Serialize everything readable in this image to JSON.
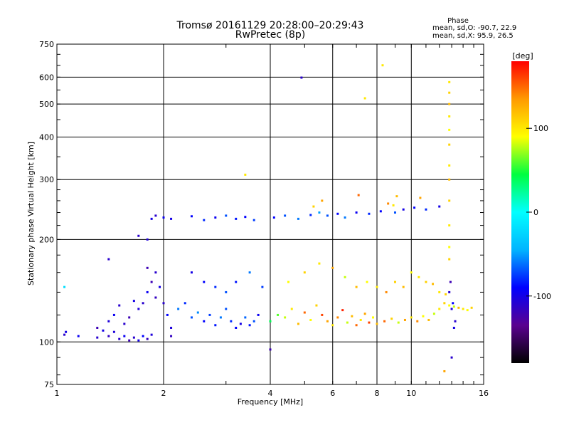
{
  "chart_data": {
    "type": "scatter",
    "title": "Tromsø 20161129 20:28:00–20:29:43",
    "subtitle": "RwPretec (8p)",
    "xlabel": "Frequency [MHz]",
    "ylabel": "Stationary phase Virtual Height [km]",
    "x_scale": "log",
    "y_scale": "log",
    "xlim": [
      1,
      16
    ],
    "ylim": [
      75,
      750
    ],
    "x_ticks": [
      1,
      2,
      4,
      6,
      8,
      10,
      16
    ],
    "y_ticks": [
      75,
      100,
      200,
      300,
      400,
      500,
      600,
      750
    ],
    "grid": true,
    "stats": {
      "heading": "Phase",
      "line_o": "mean, sd,O: -90.7, 22.9",
      "line_x": "mean, sd,X:  95.9, 26.5"
    },
    "colorbar": {
      "label": "[deg]",
      "ticks": [
        100,
        0,
        -100
      ],
      "range": [
        -180,
        180
      ],
      "colors": [
        "#000000",
        "#5a0090",
        "#0000ff",
        "#00b4ff",
        "#00ffff",
        "#00ff40",
        "#ffff00",
        "#ff9a00",
        "#ff0000"
      ]
    },
    "series": [
      {
        "values_note": "",
        "points": [
          [
            1.05,
            105,
            -110
          ],
          [
            1.06,
            107,
            -100
          ],
          [
            1.15,
            104,
            -95
          ],
          [
            1.3,
            103,
            -110
          ],
          [
            1.3,
            110,
            -120
          ],
          [
            1.35,
            108,
            -100
          ],
          [
            1.4,
            104,
            -115
          ],
          [
            1.45,
            107,
            -105
          ],
          [
            1.5,
            102,
            -110
          ],
          [
            1.55,
            104,
            -95
          ],
          [
            1.6,
            101,
            -120
          ],
          [
            1.65,
            103,
            -110
          ],
          [
            1.7,
            101,
            -100
          ],
          [
            1.75,
            104,
            -90
          ],
          [
            1.8,
            102,
            -115
          ],
          [
            1.85,
            105,
            -105
          ],
          [
            1.55,
            113,
            -110
          ],
          [
            1.6,
            118,
            -120
          ],
          [
            1.7,
            125,
            -105
          ],
          [
            1.75,
            130,
            -110
          ],
          [
            1.8,
            140,
            -95
          ],
          [
            1.85,
            150,
            -120
          ],
          [
            1.9,
            135,
            -115
          ],
          [
            1.95,
            145,
            -100
          ],
          [
            2.0,
            130,
            -110
          ],
          [
            2.05,
            120,
            -90
          ],
          [
            2.1,
            110,
            -105
          ],
          [
            2.1,
            104,
            -115
          ],
          [
            1.9,
            160,
            -110
          ],
          [
            1.8,
            165,
            -120
          ],
          [
            1.65,
            132,
            -100
          ],
          [
            1.5,
            128,
            -110
          ],
          [
            1.45,
            120,
            -95
          ],
          [
            1.4,
            115,
            -105
          ],
          [
            2.2,
            125,
            -60
          ],
          [
            2.3,
            130,
            -80
          ],
          [
            2.4,
            118,
            -70
          ],
          [
            2.5,
            122,
            -55
          ],
          [
            2.6,
            115,
            -90
          ],
          [
            2.7,
            120,
            -75
          ],
          [
            2.8,
            112,
            -85
          ],
          [
            2.9,
            118,
            -60
          ],
          [
            3.0,
            125,
            -70
          ],
          [
            3.1,
            115,
            -80
          ],
          [
            3.2,
            110,
            -90
          ],
          [
            3.3,
            113,
            -100
          ],
          [
            3.4,
            118,
            -65
          ],
          [
            3.5,
            112,
            -85
          ],
          [
            3.6,
            115,
            -70
          ],
          [
            3.7,
            120,
            -95
          ],
          [
            2.4,
            160,
            -100
          ],
          [
            2.6,
            150,
            -90
          ],
          [
            2.8,
            145,
            -80
          ],
          [
            3.0,
            140,
            -70
          ],
          [
            3.2,
            150,
            -85
          ],
          [
            3.5,
            160,
            -60
          ],
          [
            3.8,
            145,
            -75
          ],
          [
            1.7,
            205,
            -110
          ],
          [
            1.8,
            200,
            -105
          ],
          [
            1.85,
            230,
            -100
          ],
          [
            1.9,
            235,
            -110
          ],
          [
            2.0,
            232,
            -95
          ],
          [
            2.1,
            230,
            -100
          ],
          [
            2.4,
            234,
            -90
          ],
          [
            2.6,
            228,
            -80
          ],
          [
            2.8,
            232,
            -95
          ],
          [
            3.0,
            235,
            -70
          ],
          [
            3.2,
            230,
            -85
          ],
          [
            3.4,
            233,
            -90
          ],
          [
            3.6,
            228,
            -75
          ],
          [
            4.1,
            232,
            -90
          ],
          [
            4.4,
            235,
            -70
          ],
          [
            4.8,
            230,
            -60
          ],
          [
            5.2,
            236,
            -80
          ],
          [
            5.5,
            240,
            -50
          ],
          [
            5.8,
            235,
            -70
          ],
          [
            6.2,
            238,
            -90
          ],
          [
            6.5,
            232,
            -60
          ],
          [
            7.0,
            240,
            -95
          ],
          [
            7.6,
            238,
            -80
          ],
          [
            8.2,
            242,
            -90
          ],
          [
            9.0,
            240,
            -70
          ],
          [
            9.5,
            245,
            -100
          ],
          [
            10.2,
            248,
            -90
          ],
          [
            11.0,
            245,
            -80
          ],
          [
            12.0,
            250,
            -100
          ],
          [
            4.9,
            598,
            -110
          ],
          [
            1.4,
            175,
            -110
          ],
          [
            1.05,
            145,
            -20
          ],
          [
            4.0,
            95,
            -120
          ],
          [
            13.0,
            90,
            -110
          ],
          [
            12.8,
            140,
            -110
          ],
          [
            12.9,
            150,
            -120
          ],
          [
            13.0,
            125,
            -105
          ],
          [
            13.1,
            130,
            -90
          ],
          [
            13.2,
            110,
            -100
          ],
          [
            13.3,
            115,
            -110
          ]
        ]
      },
      {
        "values_note": "",
        "points": [
          [
            4.0,
            115,
            40
          ],
          [
            4.2,
            120,
            60
          ],
          [
            4.4,
            118,
            80
          ],
          [
            4.6,
            125,
            100
          ],
          [
            4.8,
            113,
            120
          ],
          [
            5.0,
            122,
            150
          ],
          [
            5.2,
            116,
            90
          ],
          [
            5.4,
            128,
            110
          ],
          [
            5.6,
            120,
            160
          ],
          [
            5.8,
            115,
            130
          ],
          [
            6.0,
            112,
            100
          ],
          [
            6.2,
            118,
            140
          ],
          [
            6.4,
            124,
            170
          ],
          [
            6.6,
            114,
            80
          ],
          [
            6.8,
            119,
            120
          ],
          [
            7.0,
            112,
            150
          ],
          [
            7.2,
            116,
            100
          ],
          [
            7.4,
            121,
            130
          ],
          [
            7.6,
            114,
            160
          ],
          [
            7.8,
            118,
            90
          ],
          [
            8.0,
            113,
            120
          ],
          [
            8.4,
            115,
            150
          ],
          [
            8.8,
            117,
            110
          ],
          [
            9.2,
            114,
            80
          ],
          [
            9.6,
            116,
            130
          ],
          [
            10.0,
            118,
            100
          ],
          [
            10.4,
            115,
            140
          ],
          [
            10.8,
            119,
            90
          ],
          [
            11.2,
            116,
            120
          ],
          [
            11.6,
            121,
            80
          ],
          [
            12.0,
            125,
            100
          ],
          [
            12.4,
            130,
            110
          ],
          [
            12.8,
            128,
            90
          ],
          [
            13.2,
            127,
            80
          ],
          [
            13.6,
            126,
            120
          ],
          [
            14.0,
            125,
            100
          ],
          [
            14.4,
            124,
            90
          ],
          [
            14.8,
            126,
            110
          ],
          [
            4.5,
            150,
            90
          ],
          [
            5.0,
            160,
            110
          ],
          [
            5.5,
            170,
            100
          ],
          [
            6.0,
            165,
            130
          ],
          [
            6.5,
            155,
            80
          ],
          [
            7.0,
            145,
            120
          ],
          [
            7.5,
            150,
            90
          ],
          [
            8.0,
            145,
            100
          ],
          [
            8.5,
            140,
            140
          ],
          [
            9.0,
            150,
            110
          ],
          [
            9.5,
            145,
            120
          ],
          [
            10.0,
            160,
            90
          ],
          [
            10.5,
            155,
            100
          ],
          [
            11.0,
            150,
            110
          ],
          [
            11.5,
            148,
            120
          ],
          [
            12.0,
            140,
            100
          ],
          [
            12.5,
            138,
            110
          ],
          [
            12.8,
            220,
            100
          ],
          [
            12.8,
            260,
            110
          ],
          [
            12.8,
            300,
            120
          ],
          [
            12.8,
            330,
            100
          ],
          [
            12.8,
            380,
            110
          ],
          [
            12.8,
            420,
            90
          ],
          [
            12.8,
            460,
            100
          ],
          [
            12.8,
            500,
            120
          ],
          [
            12.8,
            540,
            110
          ],
          [
            12.8,
            580,
            100
          ],
          [
            12.8,
            190,
            90
          ],
          [
            12.8,
            175,
            110
          ],
          [
            5.3,
            250,
            110
          ],
          [
            5.6,
            260,
            130
          ],
          [
            7.4,
            520,
            100
          ],
          [
            8.3,
            650,
            100
          ],
          [
            3.4,
            310,
            100
          ],
          [
            9.1,
            268,
            120
          ],
          [
            10.6,
            265,
            130
          ],
          [
            12.4,
            82,
            130
          ],
          [
            8.6,
            255,
            140
          ],
          [
            8.9,
            252,
            100
          ],
          [
            7.1,
            270,
            150
          ]
        ]
      }
    ]
  }
}
